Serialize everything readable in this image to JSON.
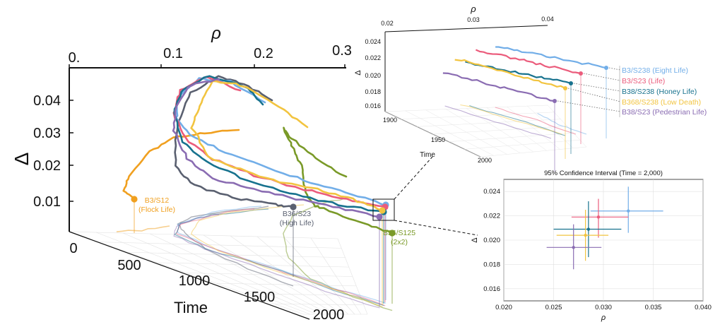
{
  "colors": {
    "orange": "#F0A020",
    "grey": "#5A6070",
    "green": "#7A9A28",
    "blue": "#72AEE8",
    "pink": "#EB5C7C",
    "teal": "#17728E",
    "yellow": "#F2C440",
    "purple": "#8A6CB2"
  },
  "chart_data": [
    {
      "type": "line",
      "projection": "3d",
      "xlabel": "ρ",
      "ylabel": "Δ",
      "zlabel": "Time",
      "xticks": [
        "0.",
        "0.1",
        "0.2",
        "0.3"
      ],
      "yticks": [
        "0.01",
        "0.02",
        "0.03",
        "0.04"
      ],
      "zticks": [
        "0",
        "500",
        "1000",
        "1500",
        "2000"
      ],
      "xlim": [
        0,
        0.3
      ],
      "ylim": [
        0,
        0.047
      ],
      "zlim": [
        0,
        2000
      ],
      "annotations": [
        {
          "label": "B3/S12",
          "sub": "(Flock Life)",
          "color": "orange"
        },
        {
          "label": "B36/S23",
          "sub": "(High Life)",
          "color": "grey"
        },
        {
          "label": "B36/S125",
          "sub": "(2x2)",
          "color": "green"
        }
      ],
      "series_colors": [
        "orange",
        "grey",
        "green",
        "blue",
        "pink",
        "teal",
        "yellow",
        "purple"
      ]
    },
    {
      "type": "line",
      "projection": "3d",
      "xlabel": "ρ",
      "ylabel": "Δ",
      "zlabel": "Time",
      "xticks": [
        "0.02",
        "0.03",
        "0.04"
      ],
      "yticks": [
        "0.016",
        "0.018",
        "0.020",
        "0.022",
        "0.024"
      ],
      "zticks": [
        "1900",
        "1950",
        "2000"
      ],
      "xlim": [
        0.02,
        0.04
      ],
      "ylim": [
        0.015,
        0.025
      ],
      "zlim": [
        1900,
        2000
      ],
      "legend": [
        {
          "label": "B3/S238 (Eight Life)",
          "color": "blue"
        },
        {
          "label": "B3/S23 (Life)",
          "color": "pink"
        },
        {
          "label": "B38/S238 (Honey Life)",
          "color": "teal"
        },
        {
          "label": "B368/S238 (Low Death)",
          "color": "yellow"
        },
        {
          "label": "B38/S23 (Pedestrian Life)",
          "color": "purple"
        }
      ]
    },
    {
      "type": "scatter",
      "title": "95% Confidence Interval (Time = 2,000)",
      "xlabel": "ρ",
      "ylabel": "Δ",
      "xlim": [
        0.02,
        0.04
      ],
      "ylim": [
        0.015,
        0.025
      ],
      "xticks": [
        "0.020",
        "0.025",
        "0.030",
        "0.035",
        "0.040"
      ],
      "yticks": [
        "0.016",
        "0.018",
        "0.020",
        "0.022",
        "0.024"
      ],
      "grid": true,
      "points": [
        {
          "name": "B3/S238 (Eight Life)",
          "color": "blue",
          "x": 0.0325,
          "y": 0.0224,
          "xerr": [
            0.0287,
            0.036
          ],
          "yerr": [
            0.0206,
            0.0244
          ]
        },
        {
          "name": "B3/S23 (Life)",
          "color": "pink",
          "x": 0.0295,
          "y": 0.0219,
          "xerr": [
            0.0268,
            0.0325
          ],
          "yerr": [
            0.0202,
            0.0234
          ]
        },
        {
          "name": "B38/S238 (Honey Life)",
          "color": "teal",
          "x": 0.0285,
          "y": 0.0209,
          "xerr": [
            0.025,
            0.0318
          ],
          "yerr": [
            0.0186,
            0.0232
          ]
        },
        {
          "name": "B368/S238 (Low Death)",
          "color": "yellow",
          "x": 0.0282,
          "y": 0.0204,
          "xerr": [
            0.0253,
            0.0305
          ],
          "yerr": [
            0.0183,
            0.0225
          ]
        },
        {
          "name": "B38/S23 (Pedestrian Life)",
          "color": "purple",
          "x": 0.027,
          "y": 0.0194,
          "xerr": [
            0.0243,
            0.0298
          ],
          "yerr": [
            0.0176,
            0.0213
          ]
        }
      ]
    }
  ]
}
